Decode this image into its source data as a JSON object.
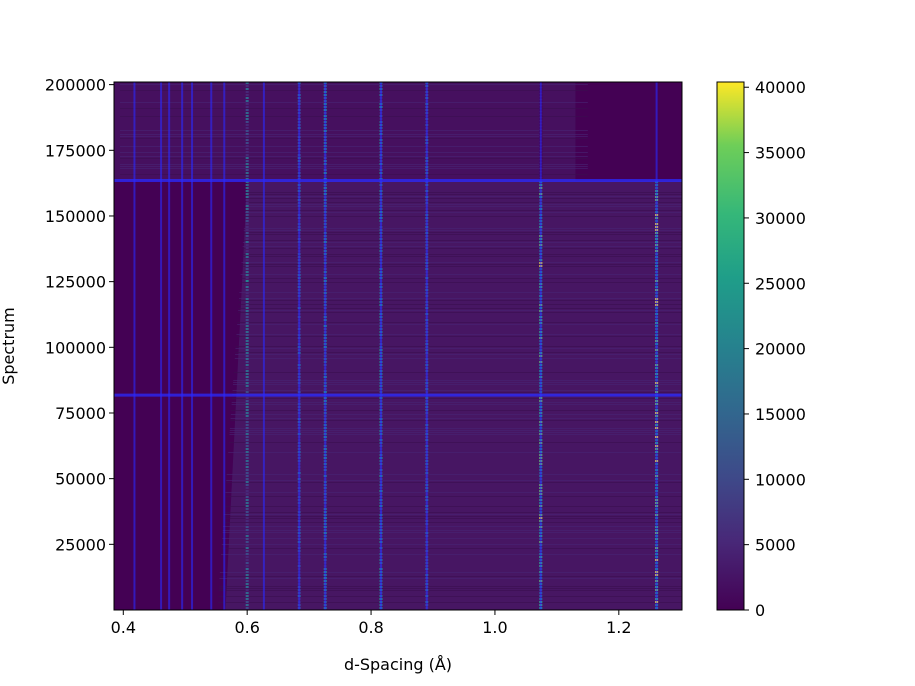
{
  "chart_data": {
    "type": "heatmap",
    "title": "",
    "xlabel": "d-Spacing (Å)",
    "ylabel": "Spectrum",
    "xlim": [
      0.385,
      1.302
    ],
    "ylim": [
      0,
      201000
    ],
    "xticks": [
      0.4,
      0.6,
      0.8,
      1.0,
      1.2
    ],
    "xtick_labels": [
      "0.4",
      "0.6",
      "0.8",
      "1.0",
      "1.2"
    ],
    "yticks": [
      25000,
      50000,
      75000,
      100000,
      125000,
      150000,
      175000,
      200000
    ],
    "ytick_labels": [
      "25000",
      "50000",
      "75000",
      "100000",
      "125000",
      "150000",
      "175000",
      "200000"
    ],
    "colorbar": {
      "colormap": "viridis",
      "range": [
        0,
        40400
      ],
      "ticks": [
        0,
        5000,
        10000,
        15000,
        20000,
        25000,
        30000,
        35000,
        40000
      ],
      "tick_labels": [
        "0",
        "5000",
        "10000",
        "15000",
        "20000",
        "25000",
        "30000",
        "35000",
        "40000"
      ]
    },
    "background_level": 3000,
    "vertical_marker_lines_d": [
      0.418,
      0.461,
      0.474,
      0.495,
      0.511,
      0.542,
      0.563,
      0.627,
      0.684,
      0.726,
      0.816,
      0.89,
      1.074,
      1.261
    ],
    "peak_lines": [
      {
        "d": 0.6,
        "intensity": 15000
      },
      {
        "d": 0.684,
        "intensity": 12000
      },
      {
        "d": 0.726,
        "intensity": 22000
      },
      {
        "d": 0.816,
        "intensity": 20000
      },
      {
        "d": 0.89,
        "intensity": 14000
      },
      {
        "d": 1.074,
        "intensity": 32000
      },
      {
        "d": 1.261,
        "intensity": 35000
      }
    ],
    "horizontal_marker_lines_spectrum": [
      81800,
      163500
    ],
    "marker_color": "#2a2aff",
    "grid": false
  }
}
